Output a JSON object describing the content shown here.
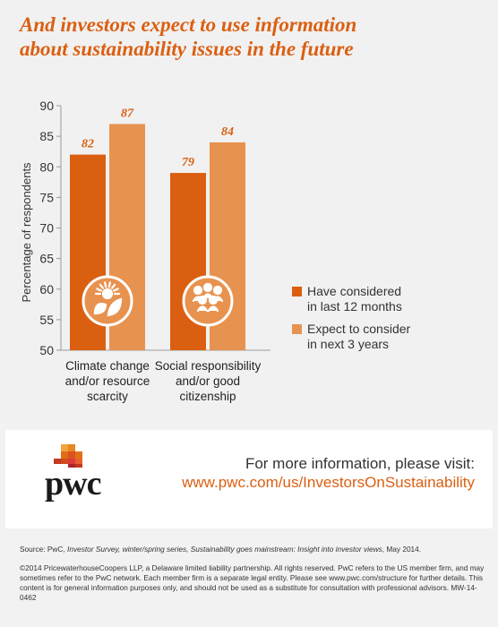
{
  "title_line1": "And investors expect to use information",
  "title_line2": "about sustainability issues in the future",
  "chart_data": {
    "type": "bar",
    "categories": [
      "Climate change and/or resource scarcity",
      "Social responsibility and/or good citizenship"
    ],
    "category_lines": [
      [
        "Climate change",
        "and/or resource",
        "scarcity"
      ],
      [
        "Social responsibility",
        "and/or good",
        "citizenship"
      ]
    ],
    "series": [
      {
        "name": "Have considered in last 12 months",
        "name_lines": [
          "Have considered",
          "in last 12 months"
        ],
        "values": [
          82,
          79
        ],
        "color": "#db5f11"
      },
      {
        "name": "Expect to consider in next 3 years",
        "name_lines": [
          "Expect to consider",
          "in next 3 years"
        ],
        "values": [
          87,
          84
        ],
        "color": "#e8924f"
      }
    ],
    "value_labels": [
      "82",
      "87",
      "79",
      "84"
    ],
    "ylabel": "Percentage of respondents",
    "ylim": [
      50,
      90
    ],
    "yticks": [
      50,
      55,
      60,
      65,
      70,
      75,
      80,
      85,
      90
    ],
    "grid": false,
    "legend_position": "right",
    "category_icons": [
      "sun-leaf-icon",
      "people-group-icon"
    ]
  },
  "colors": {
    "brand_orange": "#db5f11",
    "light_orange": "#e8924f",
    "icon_circle": "#e8924f"
  },
  "footer": {
    "more_info": "For more information, please visit:",
    "url": "www.pwc.com/us/InvestorsOnSustainability",
    "logo_text": "pwc",
    "source_prefix": "Source: PwC, ",
    "source_italic": "Investor Survey, winter/spring series, Sustainability goes mainstream: Insight into investor views",
    "source_suffix": ", May 2014.",
    "copyright": "©2014 PricewaterhouseCoopers LLP, a Delaware limited liability partnership. All rights reserved. PwC refers to the US member firm, and may sometimes refer to the PwC network. Each member firm is a separate legal entity. Please see www.pwc.com/structure for further details. This content is for general information purposes only, and should not be used as a substitute for consultation with professional advisors. MW-14-0462"
  }
}
